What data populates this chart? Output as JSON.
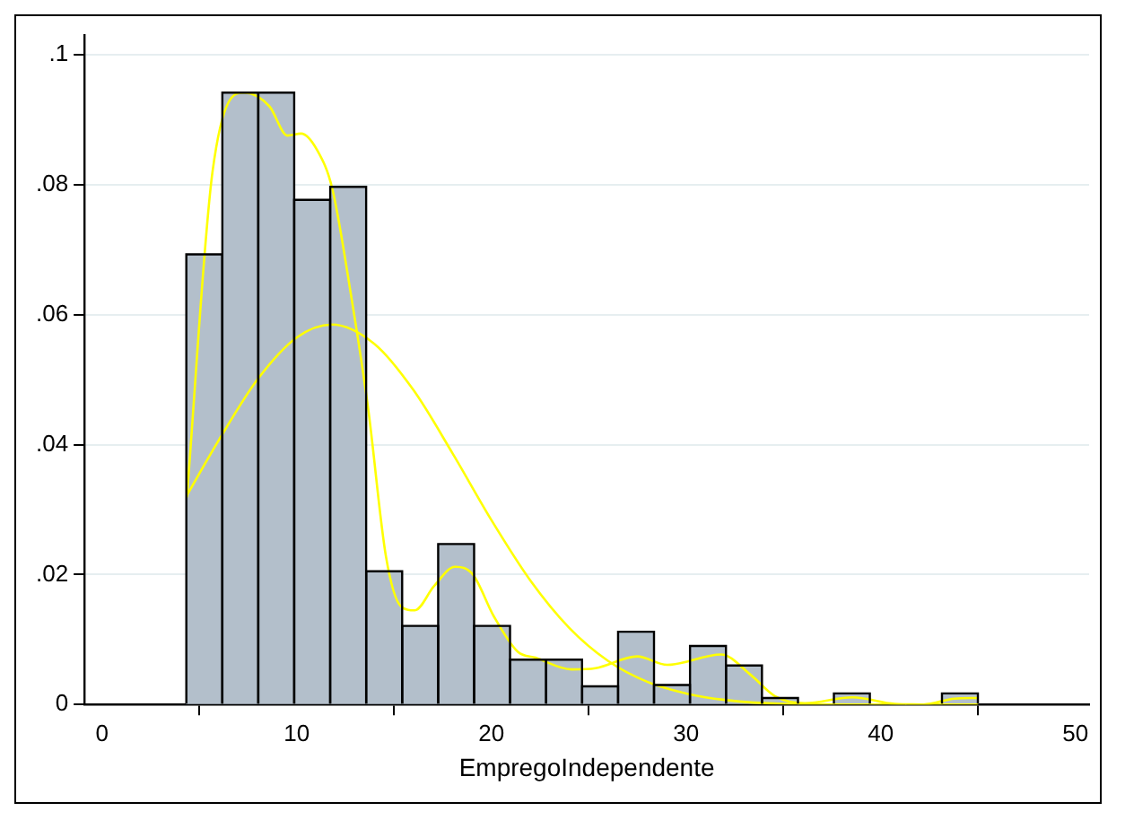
{
  "chart_data": {
    "type": "histogram",
    "bins": [
      4.33,
      6.18,
      8.03,
      9.87,
      11.72,
      13.57,
      15.42,
      17.27,
      19.11,
      20.96,
      22.81,
      24.66,
      26.51,
      28.35,
      30.2,
      32.05,
      33.9,
      35.75,
      37.59,
      39.44,
      41.29,
      43.14,
      44.99
    ],
    "values": [
      0.0693,
      0.0942,
      0.0942,
      0.0777,
      0.0797,
      0.0205,
      0.0121,
      0.0247,
      0.0121,
      0.0069,
      0.0069,
      0.0028,
      0.0112,
      0.003,
      0.009,
      0.006,
      0.001,
      0,
      0.0017,
      0,
      0,
      0.0017
    ],
    "color": "#b3bfcb",
    "series": [
      {
        "type": "line",
        "color": "#ffff00",
        "x": [
          4.36,
          5.68,
          7.31,
          8.6,
          9.52,
          10.23,
          11.06,
          11.83,
          12.75,
          13.67,
          14.59,
          15.36,
          16.07,
          17.05,
          18.13,
          19.05,
          20.12,
          21.36,
          22.27,
          24.12,
          25.35,
          27.49,
          29.03,
          31.8,
          33.34,
          34.56,
          36.1,
          38.55,
          40.71,
          42.2,
          43.78,
          45.0
        ],
        "values": [
          0.0319,
          0.0821,
          0.0942,
          0.0921,
          0.0876,
          0.0879,
          0.0853,
          0.0794,
          0.0638,
          0.0456,
          0.0227,
          0.0151,
          0.0145,
          0.0182,
          0.0212,
          0.02,
          0.0136,
          0.0081,
          0.0072,
          0.0054,
          0.0056,
          0.0074,
          0.0061,
          0.0077,
          0.0045,
          0.0013,
          0.0002,
          0.0011,
          0.0001,
          0,
          0.0009,
          0.001
        ]
      },
      {
        "type": "line",
        "color": "#ffff00",
        "x": [
          4.36,
          6,
          8,
          10,
          11.8,
          14,
          16,
          18,
          20,
          22,
          24,
          26,
          28,
          30,
          32,
          35,
          40,
          45
        ],
        "values": [
          0.0322,
          0.0407,
          0.0501,
          0.0565,
          0.0585,
          0.0555,
          0.0484,
          0.0387,
          0.0284,
          0.0191,
          0.0118,
          0.0067,
          0.0035,
          0.0017,
          0.0007,
          0.0001,
          0,
          0
        ]
      }
    ],
    "xlabel": "EmpregoIndependente",
    "xlim": [
      -0.9,
      50.7
    ],
    "xticks": [
      0,
      10,
      20,
      30,
      40,
      50
    ],
    "ylim": [
      0,
      0.103
    ],
    "yticks": [
      {
        "value": 0,
        "label": "0"
      },
      {
        "value": 0.02,
        "label": ".02"
      },
      {
        "value": 0.04,
        "label": ".04"
      },
      {
        "value": 0.06,
        "label": ".06"
      },
      {
        "value": 0.08,
        "label": ".08"
      },
      {
        "value": 0.1,
        "label": ".1"
      }
    ],
    "grid": "y",
    "legend": false
  }
}
